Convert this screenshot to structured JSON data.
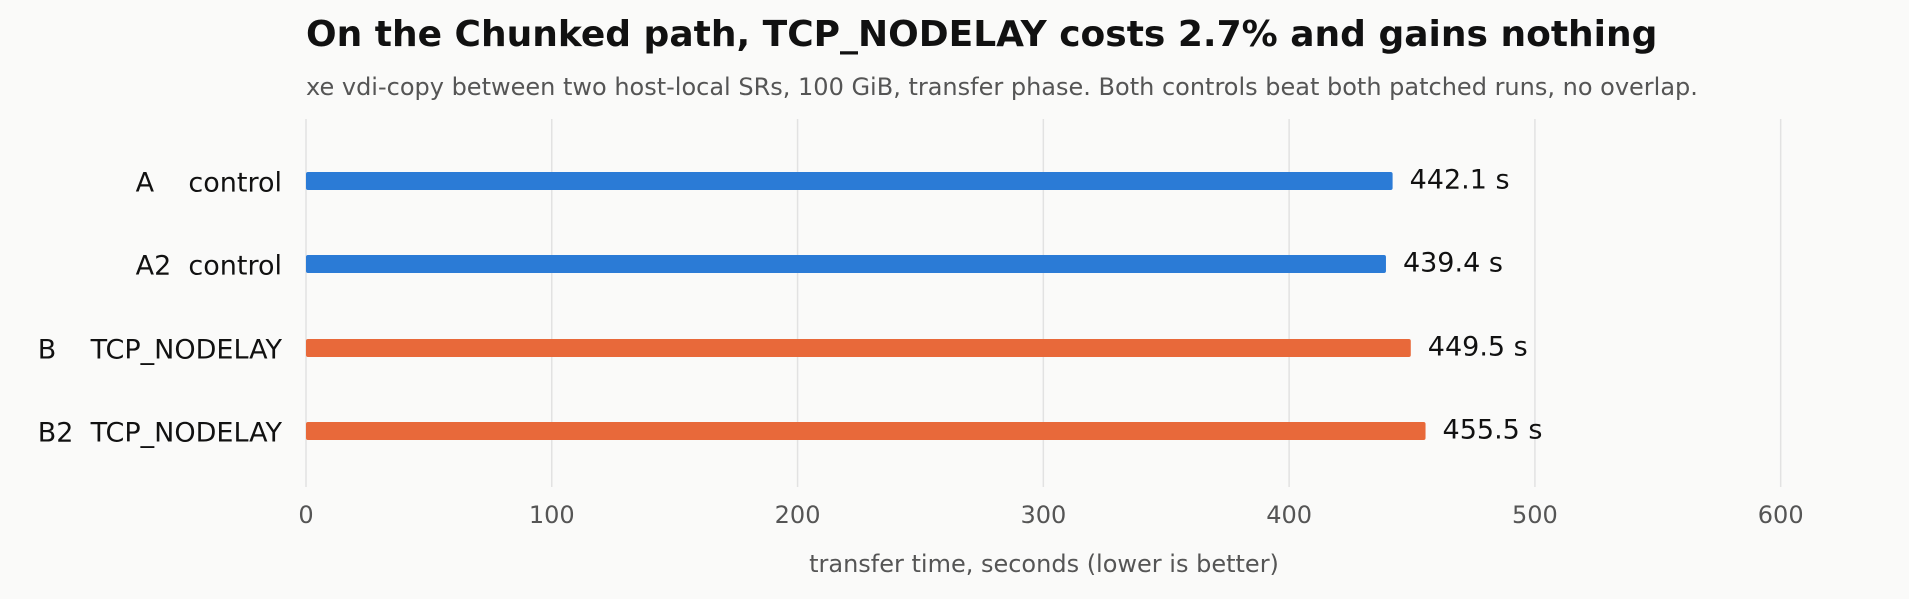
{
  "chart_data": {
    "type": "bar",
    "orientation": "horizontal",
    "title": "On the Chunked path, TCP_NODELAY costs 2.7% and gains nothing",
    "subtitle": "xe vdi-copy between two host-local SRs, 100 GiB, transfer phase. Both controls beat both patched runs, no overlap.",
    "x_label": "transfer time, seconds (lower is better)",
    "categories": [
      "A    control",
      "A2  control",
      "B    TCP_NODELAY",
      "B2  TCP_NODELAY"
    ],
    "values": [
      442.1,
      439.4,
      449.5,
      455.5
    ],
    "value_labels": [
      "442.1 s",
      "439.4 s",
      "449.5 s",
      "455.5 s"
    ],
    "colors": [
      "#2b7bd6",
      "#2b7bd6",
      "#e8693a",
      "#e8693a"
    ],
    "xlim": [
      0,
      640
    ],
    "xticks": [
      0,
      100,
      200,
      300,
      400,
      500,
      600
    ],
    "grid": true
  }
}
